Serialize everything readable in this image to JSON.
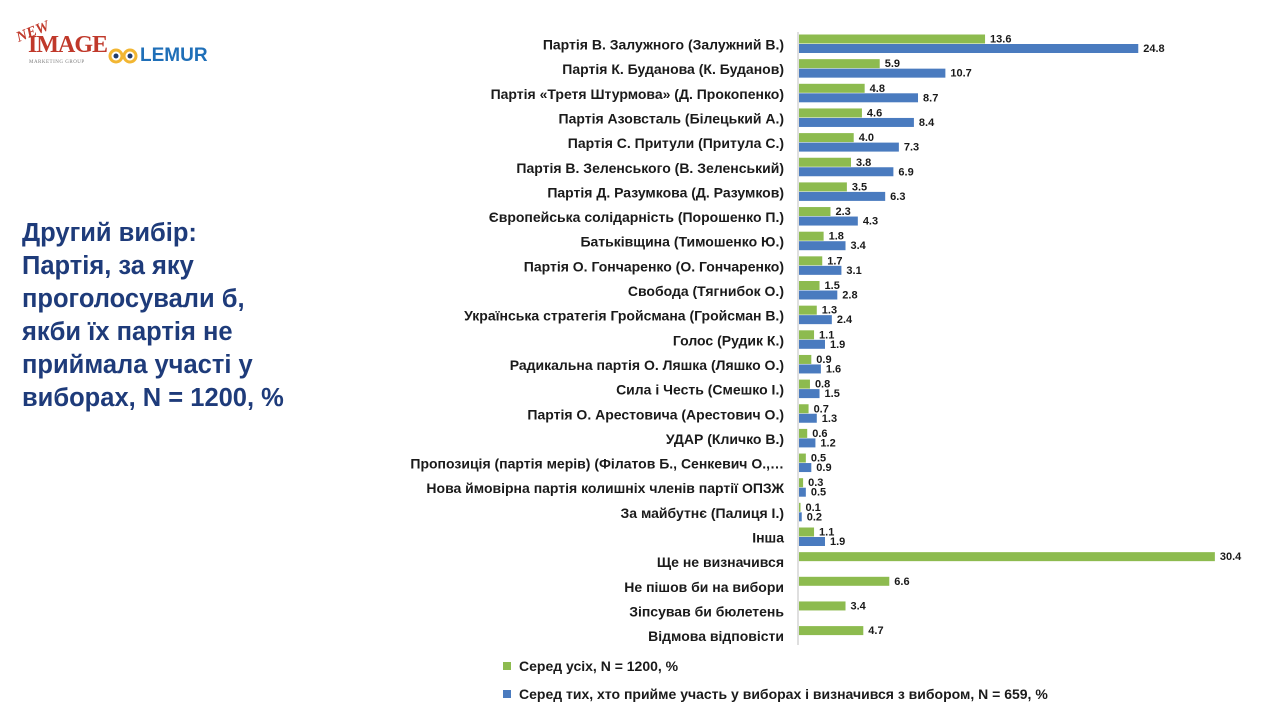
{
  "logos": {
    "new": "NEW",
    "image": "IMAGE",
    "image_sub": "MARKETING GROUP",
    "lemur": "LEMUR"
  },
  "title_lines": [
    "Другий вибір:",
    "Партія, за яку",
    "проголосували б,",
    "якби їх партія не",
    "приймала участі у",
    "виборах, N = 1200, %"
  ],
  "colors": {
    "series_all": "#8dbb4f",
    "series_voters": "#4a7bbf",
    "label": "#1a1a1a"
  },
  "legend": [
    "Серед усіх, N = 1200, %",
    "Серед тих, хто прийме участь у виборах і визначився з вибором, N = 659, %"
  ],
  "chart_data": {
    "type": "bar",
    "orientation": "horizontal",
    "categories": [
      "Партія В. Залужного (Залужний В.)",
      "Партія К. Буданова (К. Буданов)",
      "Партія «Третя Штурмова» (Д. Прокопенко)",
      "Партія Азовсталь (Білецький А.)",
      "Партія С. Притули (Притула С.)",
      "Партія В. Зеленського (В. Зеленський)",
      "Партія Д. Разумкова (Д. Разумков)",
      "Європейська солідарність (Порошенко П.)",
      "Батьківщина (Тимошенко Ю.)",
      "Партія О. Гончаренко (О. Гончаренко)",
      "Свобода (Тягнибок О.)",
      "Українська стратегія Гройсмана (Гройсман В.)",
      "Голос (Рудик К.)",
      "Радикальна партія О. Ляшка (Ляшко О.)",
      "Сила і Честь (Смешко І.)",
      "Партія О. Арестовича (Арестович О.)",
      "УДАР (Кличко В.)",
      "Пропозиція (партія мерів) (Філатов Б., Сенкевич О.,…",
      "Нова ймовірна партія колишніх членів партії ОПЗЖ",
      "За майбутнє (Палиця І.)",
      "Інша",
      "Ще не визначився",
      "Не пішов би на вибори",
      "Зіпсував би бюлетень",
      "Відмова відповісти"
    ],
    "series": [
      {
        "name": "Серед усіх, N = 1200, %",
        "values": [
          13.6,
          5.9,
          4.8,
          4.6,
          4.0,
          3.8,
          3.5,
          2.3,
          1.8,
          1.7,
          1.5,
          1.3,
          1.1,
          0.9,
          0.8,
          0.7,
          0.6,
          0.5,
          0.3,
          0.1,
          1.1,
          30.4,
          6.6,
          3.4,
          4.7
        ],
        "labels": [
          "13.6",
          "5.9",
          "4.8",
          "4.6",
          "4.0",
          "3.8",
          "3.5",
          "2.3",
          "1.8",
          "1.7",
          "1.5",
          "1.3",
          "1.1",
          "0.9",
          "0.8",
          "0.7",
          "0.6",
          "0.5",
          "0.3",
          "0.1",
          "1.1",
          "30.4",
          "6.6",
          "3.4",
          "4.7"
        ]
      },
      {
        "name": "Серед тих, хто прийме участь у виборах і визначився з вибором, N = 659, %",
        "values": [
          24.8,
          10.7,
          8.7,
          8.4,
          7.3,
          6.9,
          6.3,
          4.3,
          3.4,
          3.1,
          2.8,
          2.4,
          1.9,
          1.6,
          1.5,
          1.3,
          1.2,
          0.9,
          0.5,
          0.2,
          1.9,
          null,
          null,
          null,
          null
        ],
        "labels": [
          "24.8",
          "10.7",
          "8.7",
          "8.4",
          "7.3",
          "6.9",
          "6.3",
          "4.3",
          "3.4",
          "3.1",
          "2.8",
          "2.4",
          "1.9",
          "1.6",
          "1.5",
          "1.3",
          "1.2",
          "0.9",
          "0.5",
          "0.2",
          "1.9",
          null,
          null,
          null,
          null
        ]
      }
    ],
    "xlim": [
      0,
      30.4
    ],
    "grid": false,
    "legend_position": "bottom"
  }
}
